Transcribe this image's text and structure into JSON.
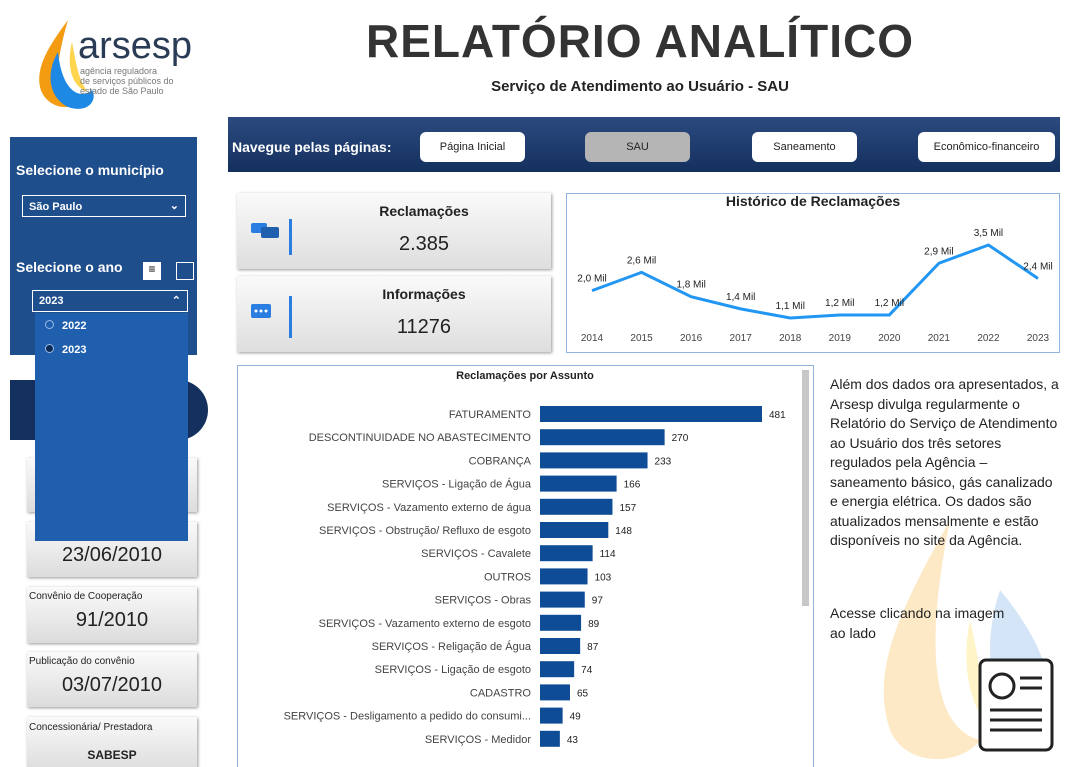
{
  "header": {
    "logo_name": "arsesp",
    "logo_sub": [
      "agência reguladora",
      "de serviços públicos do",
      "estado de São Paulo"
    ],
    "title": "RELATÓRIO ANALÍTICO",
    "subtitle": "Serviço de Atendimento ao Usuário - SAU"
  },
  "nav": {
    "label": "Navegue pelas páginas:",
    "buttons": [
      "Página Inicial",
      "SAU",
      "Saneamento",
      "Econômico-financeiro"
    ]
  },
  "sidebar": {
    "municipio_label": "Selecione o município",
    "municipio_value": "São Paulo",
    "ano_label": "Selecione o ano",
    "ano_value": "2023",
    "ano_options": [
      "2022",
      "2023"
    ]
  },
  "cards": [
    {
      "value": "23/06/2010"
    },
    {
      "label": "Convênio de Cooperação",
      "value": "91/2010"
    },
    {
      "label": "Publicação do convênio",
      "value": "03/07/2010"
    },
    {
      "label": "Concessionária/ Prestadora",
      "value": "SABESP"
    }
  ],
  "kpis": [
    {
      "label": "Reclamações",
      "value": "2.385"
    },
    {
      "label": "Informações",
      "value": "11276"
    }
  ],
  "line_chart": {
    "title": "Histórico de Reclamações",
    "categories": [
      "2014",
      "2015",
      "2016",
      "2017",
      "2018",
      "2019",
      "2020",
      "2021",
      "2022",
      "2023"
    ],
    "values": [
      2.0,
      2.6,
      1.8,
      1.4,
      1.1,
      1.2,
      1.2,
      2.9,
      3.5,
      2.4
    ],
    "value_labels": [
      "2,0 Mil",
      "2,6 Mil",
      "1,8 Mil",
      "1,4 Mil",
      "1,1 Mil",
      "1,2 Mil",
      "1,2 Mil",
      "2,9 Mil",
      "3,5 Mil",
      "2,4 Mil"
    ],
    "color": "#2196f3"
  },
  "bar_chart": {
    "title": "Reclamações por Assunto",
    "categories": [
      "FATURAMENTO",
      "DESCONTINUIDADE NO ABASTECIMENTO",
      "COBRANÇA",
      "SERVIÇOS - Ligação de Água",
      "SERVIÇOS - Vazamento externo de água",
      "SERVIÇOS - Obstrução/ Refluxo de esgoto",
      "SERVIÇOS - Cavalete",
      "OUTROS",
      "SERVIÇOS - Obras",
      "SERVIÇOS - Vazamento externo de esgoto",
      "SERVIÇOS - Religação de Água",
      "SERVIÇOS - Ligação de esgoto",
      "CADASTRO",
      "SERVIÇOS - Desligamento a pedido do consumi...",
      "SERVIÇOS - Medidor"
    ],
    "values": [
      481,
      270,
      233,
      166,
      157,
      148,
      114,
      103,
      97,
      89,
      87,
      74,
      65,
      49,
      43
    ],
    "color": "#0e4c96"
  },
  "info": {
    "paragraph": "Além dos dados ora apresentados, a Arsesp divulga regularmente o Relatório do Serviço de Atendimento ao Usuário dos três setores regulados pela Agência – saneamento básico, gás canalizado e energia elétrica. Os dados são atualizados mensalmente e estão disponíveis no site da Agência.",
    "link_text": "Acesse clicando na imagem ao lado"
  }
}
